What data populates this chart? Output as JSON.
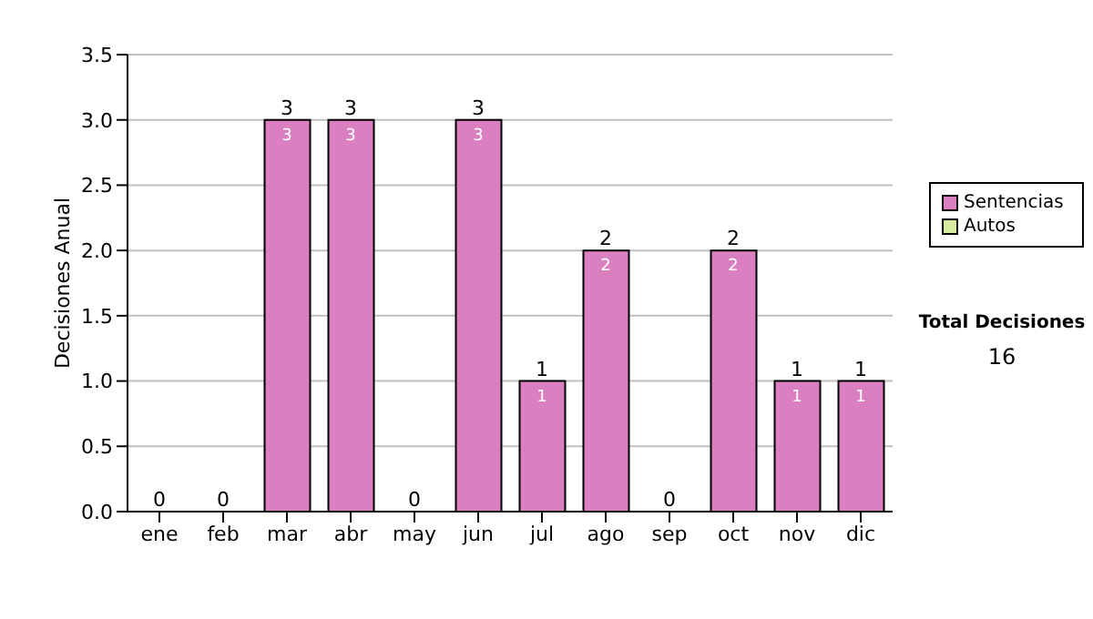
{
  "chart_data": {
    "type": "bar",
    "stacked": true,
    "ylabel": "Decisiones Anual",
    "categories": [
      "ene",
      "feb",
      "mar",
      "abr",
      "may",
      "jun",
      "jul",
      "ago",
      "sep",
      "oct",
      "nov",
      "dic"
    ],
    "series": [
      {
        "name": "Sentencias",
        "color": "#da7fc0",
        "values": [
          0,
          0,
          3,
          3,
          0,
          3,
          1,
          2,
          0,
          2,
          1,
          1
        ],
        "value_labels": [
          null,
          null,
          "3",
          "3",
          null,
          "3",
          "1",
          "2",
          null,
          "2",
          "1",
          "1"
        ]
      },
      {
        "name": "Autos",
        "color": "#d6eaa0",
        "values": [
          0,
          0,
          0,
          0,
          0,
          0,
          0,
          0,
          0,
          0,
          0,
          0
        ]
      }
    ],
    "totals": [
      "0",
      "0",
      "3",
      "3",
      "0",
      "3",
      "1",
      "2",
      "0",
      "2",
      "1",
      "1"
    ],
    "ylim": [
      0,
      3.5
    ],
    "yticks": [
      {
        "value": 0,
        "label": "0.0"
      },
      {
        "value": 0.5,
        "label": "0.5"
      },
      {
        "value": 1,
        "label": "1.0"
      },
      {
        "value": 1.5,
        "label": "1.5"
      },
      {
        "value": 2,
        "label": "2.0"
      },
      {
        "value": 2.5,
        "label": "2.5"
      },
      {
        "value": 3,
        "label": "3.0"
      },
      {
        "value": 3.5,
        "label": "3.5"
      }
    ],
    "grid": "y",
    "legend": "right",
    "annotations": [
      "Total Decisiones",
      "16"
    ]
  }
}
